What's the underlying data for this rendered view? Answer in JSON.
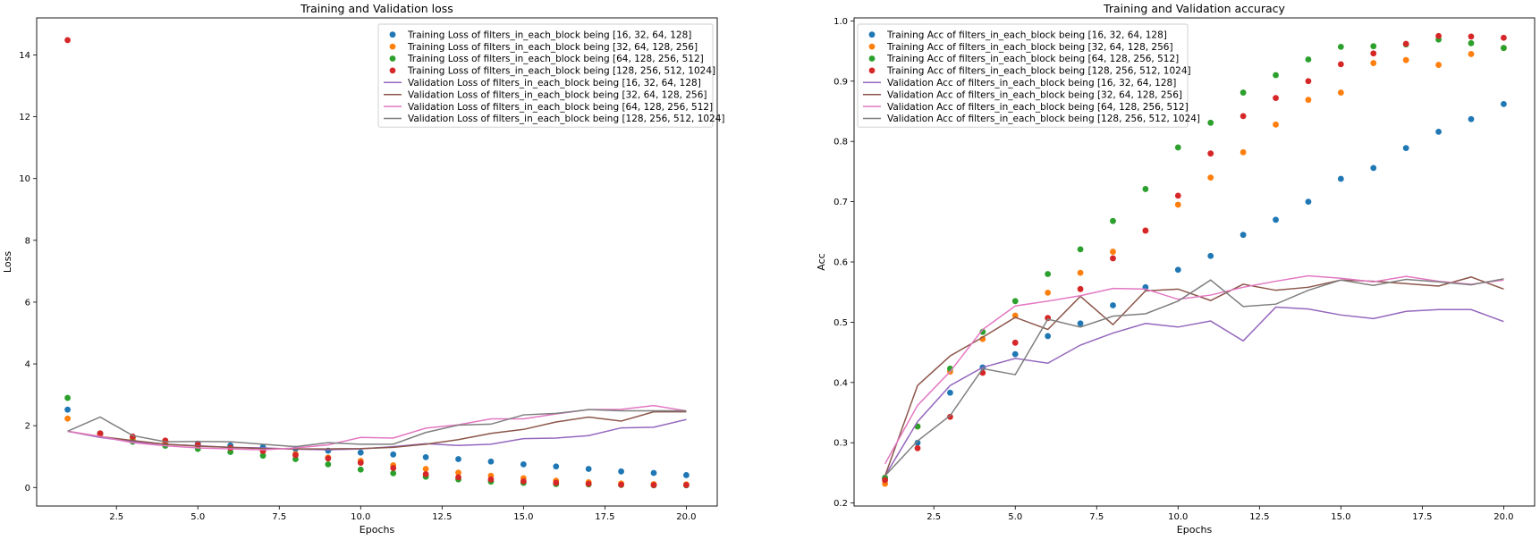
{
  "chart_data": [
    {
      "type": "scatter+line",
      "title": "Training and Validation loss",
      "xlabel": "Epochs",
      "ylabel": "Loss",
      "xlim": [
        0.05,
        20.95
      ],
      "ylim": [
        -0.6,
        15.2
      ],
      "xticks": [
        2.5,
        5.0,
        7.5,
        10.0,
        12.5,
        15.0,
        17.5,
        20.0
      ],
      "xtick_labels": [
        "2.5",
        "5.0",
        "7.5",
        "10.0",
        "12.5",
        "15.0",
        "17.5",
        "20.0"
      ],
      "yticks": [
        0,
        2,
        4,
        6,
        8,
        10,
        12,
        14
      ],
      "ytick_labels": [
        "0",
        "2",
        "4",
        "6",
        "8",
        "10",
        "12",
        "14"
      ],
      "legend_position": "top-right",
      "x": [
        1,
        2,
        3,
        4,
        5,
        6,
        7,
        8,
        9,
        10,
        11,
        12,
        13,
        14,
        15,
        16,
        17,
        18,
        19,
        20
      ],
      "series": [
        {
          "name": "Training Loss of filters_in_each_block being [16, 32, 64, 128]",
          "kind": "scatter",
          "color": "#1f77b4",
          "values": [
            2.52,
            1.75,
            1.62,
            1.5,
            1.42,
            1.36,
            1.31,
            1.25,
            1.19,
            1.13,
            1.07,
            0.98,
            0.92,
            0.84,
            0.75,
            0.68,
            0.6,
            0.52,
            0.47,
            0.4
          ]
        },
        {
          "name": "Training Loss of filters_in_each_block being [32, 64, 128, 256]",
          "kind": "scatter",
          "color": "#ff7f0e",
          "values": [
            2.23,
            1.72,
            1.57,
            1.45,
            1.35,
            1.28,
            1.18,
            1.08,
            0.97,
            0.86,
            0.72,
            0.6,
            0.48,
            0.38,
            0.3,
            0.22,
            0.17,
            0.13,
            0.11,
            0.1
          ]
        },
        {
          "name": "Training Loss of filters_in_each_block being [64, 128, 256, 512]",
          "kind": "scatter",
          "color": "#2ca02c",
          "values": [
            2.9,
            1.75,
            1.48,
            1.35,
            1.25,
            1.15,
            1.03,
            0.92,
            0.75,
            0.58,
            0.46,
            0.35,
            0.26,
            0.19,
            0.15,
            0.11,
            0.1,
            0.08,
            0.07,
            0.07
          ]
        },
        {
          "name": "Training Loss of filters_in_each_block being [128, 256, 512, 1024]",
          "kind": "scatter",
          "color": "#d62728",
          "values": [
            14.48,
            1.75,
            1.65,
            1.52,
            1.38,
            1.28,
            1.18,
            1.05,
            0.94,
            0.8,
            0.63,
            0.43,
            0.33,
            0.26,
            0.2,
            0.15,
            0.12,
            0.09,
            0.08,
            0.08
          ]
        },
        {
          "name": "Validation Loss of filters_in_each_block being [16, 32, 64, 128]",
          "kind": "line",
          "color": "#9467bd",
          "values": [
            1.82,
            1.62,
            1.48,
            1.4,
            1.35,
            1.3,
            1.28,
            1.24,
            1.22,
            1.25,
            1.32,
            1.42,
            1.36,
            1.4,
            1.58,
            1.6,
            1.68,
            1.93,
            1.95,
            2.2
          ]
        },
        {
          "name": "Validation Loss of filters_in_each_block being [32, 64, 128, 256]",
          "kind": "line",
          "color": "#8c564b",
          "values": [
            1.82,
            1.65,
            1.52,
            1.4,
            1.34,
            1.3,
            1.26,
            1.25,
            1.25,
            1.26,
            1.3,
            1.4,
            1.55,
            1.75,
            1.88,
            2.12,
            2.28,
            2.15,
            2.45,
            2.45
          ]
        },
        {
          "name": "Validation Loss of filters_in_each_block being [64, 128, 256, 512]",
          "kind": "line",
          "color": "#e377c2",
          "values": [
            1.82,
            1.65,
            1.45,
            1.35,
            1.28,
            1.25,
            1.22,
            1.28,
            1.38,
            1.62,
            1.6,
            1.92,
            2.03,
            2.22,
            2.22,
            2.38,
            2.52,
            2.53,
            2.65,
            2.48
          ]
        },
        {
          "name": "Validation Loss of filters_in_each_block being [128, 256, 512, 1024]",
          "kind": "line",
          "color": "#7f7f7f",
          "values": [
            1.82,
            2.28,
            1.68,
            1.48,
            1.49,
            1.48,
            1.4,
            1.32,
            1.45,
            1.4,
            1.4,
            1.78,
            2.02,
            2.05,
            2.35,
            2.4,
            2.52,
            2.48,
            2.48,
            2.48
          ]
        }
      ]
    },
    {
      "type": "scatter+line",
      "title": "Training and Validation accuracy",
      "xlabel": "Epochs",
      "ylabel": "Acc",
      "xlim": [
        0.05,
        20.95
      ],
      "ylim": [
        0.195,
        1.005
      ],
      "xticks": [
        2.5,
        5.0,
        7.5,
        10.0,
        12.5,
        15.0,
        17.5,
        20.0
      ],
      "xtick_labels": [
        "2.5",
        "5.0",
        "7.5",
        "10.0",
        "12.5",
        "15.0",
        "17.5",
        "20.0"
      ],
      "yticks": [
        0.2,
        0.3,
        0.4,
        0.5,
        0.6,
        0.7,
        0.8,
        0.9,
        1.0
      ],
      "ytick_labels": [
        "0.2",
        "0.3",
        "0.4",
        "0.5",
        "0.6",
        "0.7",
        "0.8",
        "0.9",
        "1.0"
      ],
      "legend_position": "top-left",
      "x": [
        1,
        2,
        3,
        4,
        5,
        6,
        7,
        8,
        9,
        10,
        11,
        12,
        13,
        14,
        15,
        16,
        17,
        18,
        19,
        20
      ],
      "series": [
        {
          "name": "Training Acc of filters_in_each_block being [16, 32, 64, 128]",
          "kind": "scatter",
          "color": "#1f77b4",
          "values": [
            0.24,
            0.3,
            0.383,
            0.425,
            0.447,
            0.477,
            0.498,
            0.528,
            0.558,
            0.587,
            0.61,
            0.645,
            0.67,
            0.7,
            0.738,
            0.756,
            0.789,
            0.816,
            0.837,
            0.862
          ]
        },
        {
          "name": "Training Acc of filters_in_each_block being [32, 64, 128, 256]",
          "kind": "scatter",
          "color": "#ff7f0e",
          "values": [
            0.232,
            0.327,
            0.418,
            0.472,
            0.511,
            0.549,
            0.582,
            0.617,
            0.652,
            0.695,
            0.74,
            0.782,
            0.828,
            0.869,
            0.881,
            0.93,
            0.935,
            0.927,
            0.945,
            0.955
          ]
        },
        {
          "name": "Training Acc of filters_in_each_block being [64, 128, 256, 512]",
          "kind": "scatter",
          "color": "#2ca02c",
          "values": [
            0.242,
            0.327,
            0.423,
            0.484,
            0.535,
            0.58,
            0.621,
            0.668,
            0.721,
            0.79,
            0.831,
            0.881,
            0.91,
            0.936,
            0.957,
            0.958,
            0.961,
            0.969,
            0.963,
            0.955
          ]
        },
        {
          "name": "Training Acc of filters_in_each_block being [128, 256, 512, 1024]",
          "kind": "scatter",
          "color": "#d62728",
          "values": [
            0.238,
            0.291,
            0.343,
            0.416,
            0.466,
            0.507,
            0.555,
            0.606,
            0.652,
            0.71,
            0.78,
            0.842,
            0.872,
            0.9,
            0.928,
            0.946,
            0.962,
            0.975,
            0.974,
            0.972
          ]
        },
        {
          "name": "Validation Acc of filters_in_each_block being [16, 32, 64, 128]",
          "kind": "line",
          "color": "#9467bd",
          "values": [
            0.245,
            0.335,
            0.395,
            0.425,
            0.44,
            0.432,
            0.462,
            0.482,
            0.498,
            0.492,
            0.502,
            0.469,
            0.525,
            0.522,
            0.512,
            0.506,
            0.518,
            0.521,
            0.521,
            0.501
          ]
        },
        {
          "name": "Validation Acc of filters_in_each_block being [32, 64, 128, 256]",
          "kind": "line",
          "color": "#8c564b",
          "values": [
            0.245,
            0.395,
            0.444,
            0.475,
            0.508,
            0.488,
            0.543,
            0.496,
            0.552,
            0.555,
            0.536,
            0.563,
            0.553,
            0.558,
            0.57,
            0.568,
            0.564,
            0.56,
            0.575,
            0.555
          ]
        },
        {
          "name": "Validation Acc of filters_in_each_block being [64, 128, 256, 512]",
          "kind": "line",
          "color": "#e377c2",
          "values": [
            0.265,
            0.362,
            0.418,
            0.488,
            0.527,
            0.535,
            0.544,
            0.556,
            0.555,
            0.538,
            0.545,
            0.558,
            0.568,
            0.577,
            0.573,
            0.567,
            0.576,
            0.568,
            0.563,
            0.57
          ]
        },
        {
          "name": "Validation Acc of filters_in_each_block being [128, 256, 512, 1024]",
          "kind": "line",
          "color": "#7f7f7f",
          "values": [
            0.245,
            0.303,
            0.345,
            0.423,
            0.413,
            0.505,
            0.492,
            0.51,
            0.514,
            0.535,
            0.57,
            0.526,
            0.53,
            0.553,
            0.57,
            0.561,
            0.571,
            0.567,
            0.562,
            0.572
          ]
        }
      ]
    }
  ]
}
